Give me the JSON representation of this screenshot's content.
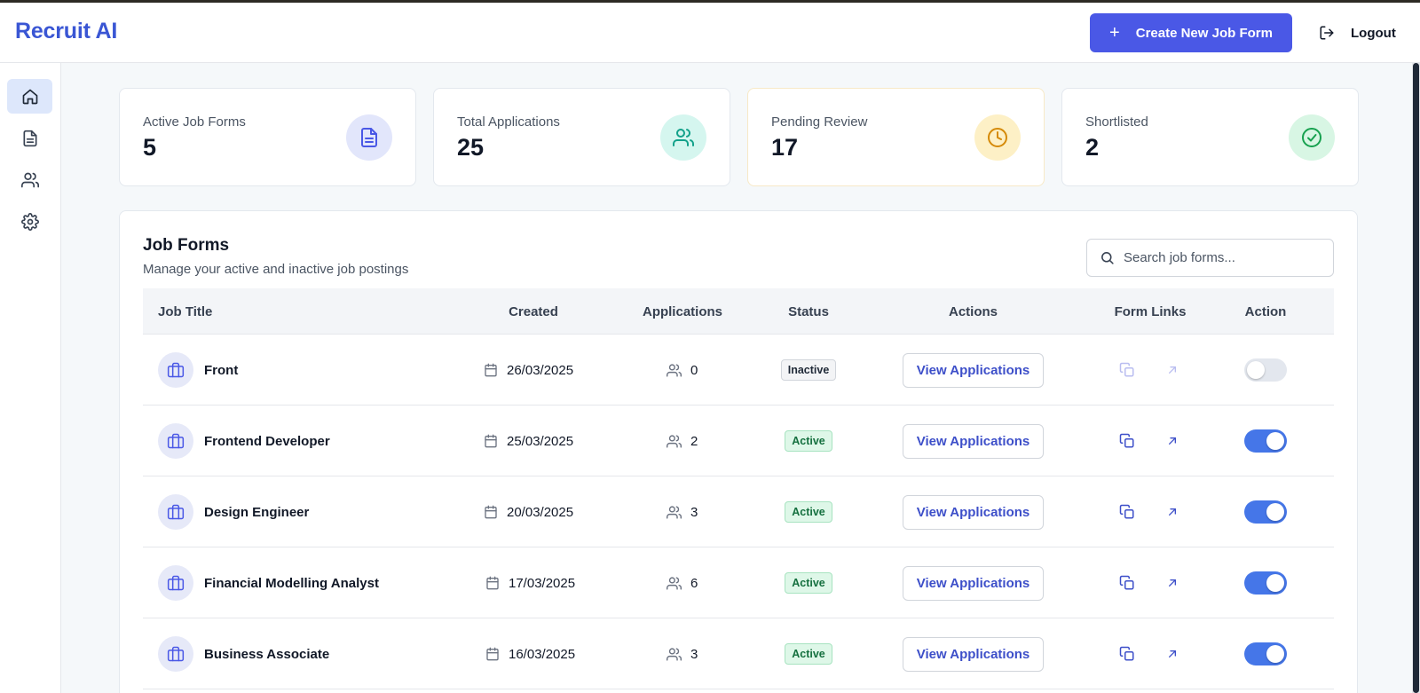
{
  "app": {
    "brand": "Recruit AI"
  },
  "header": {
    "create_label": "Create New Job Form",
    "logout_label": "Logout"
  },
  "sidebar": {
    "items": [
      {
        "icon": "home-icon",
        "active": true
      },
      {
        "icon": "document-icon",
        "active": false
      },
      {
        "icon": "users-icon",
        "active": false
      },
      {
        "icon": "gear-icon",
        "active": false
      }
    ]
  },
  "stats": [
    {
      "label": "Active Job Forms",
      "value": "5",
      "icon": "document-icon",
      "icon_bg": "#e2e6fb",
      "icon_color": "#4a58e6"
    },
    {
      "label": "Total Applications",
      "value": "25",
      "icon": "users-icon",
      "icon_bg": "#d5f6ef",
      "icon_color": "#12a18a"
    },
    {
      "label": "Pending Review",
      "value": "17",
      "icon": "clock-icon",
      "icon_bg": "#fdf0c6",
      "icon_color": "#d58a08"
    },
    {
      "label": "Shortlisted",
      "value": "2",
      "icon": "check-circle-icon",
      "icon_bg": "#d8f6e4",
      "icon_color": "#17a14f"
    }
  ],
  "job_forms": {
    "title": "Job Forms",
    "subtitle": "Manage your active and inactive job postings",
    "search_placeholder": "Search job forms...",
    "columns": [
      "Job Title",
      "Created",
      "Applications",
      "Status",
      "Actions",
      "Form Links",
      "Action"
    ],
    "view_label": "View Applications",
    "rows": [
      {
        "title": "Front",
        "created": "26/03/2025",
        "applications": "0",
        "status": "Inactive",
        "enabled": false
      },
      {
        "title": "Frontend Developer",
        "created": "25/03/2025",
        "applications": "2",
        "status": "Active",
        "enabled": true
      },
      {
        "title": "Design Engineer",
        "created": "20/03/2025",
        "applications": "3",
        "status": "Active",
        "enabled": true
      },
      {
        "title": "Financial Modelling Analyst",
        "created": "17/03/2025",
        "applications": "6",
        "status": "Active",
        "enabled": true
      },
      {
        "title": "Business Associate",
        "created": "16/03/2025",
        "applications": "3",
        "status": "Active",
        "enabled": true
      }
    ]
  },
  "colors": {
    "brand": "#3a56d4",
    "primary": "#4a58e6",
    "toggle_on": "#4576e8",
    "link_active": "#3d4fc9",
    "link_inactive": "#b9bdf0"
  }
}
